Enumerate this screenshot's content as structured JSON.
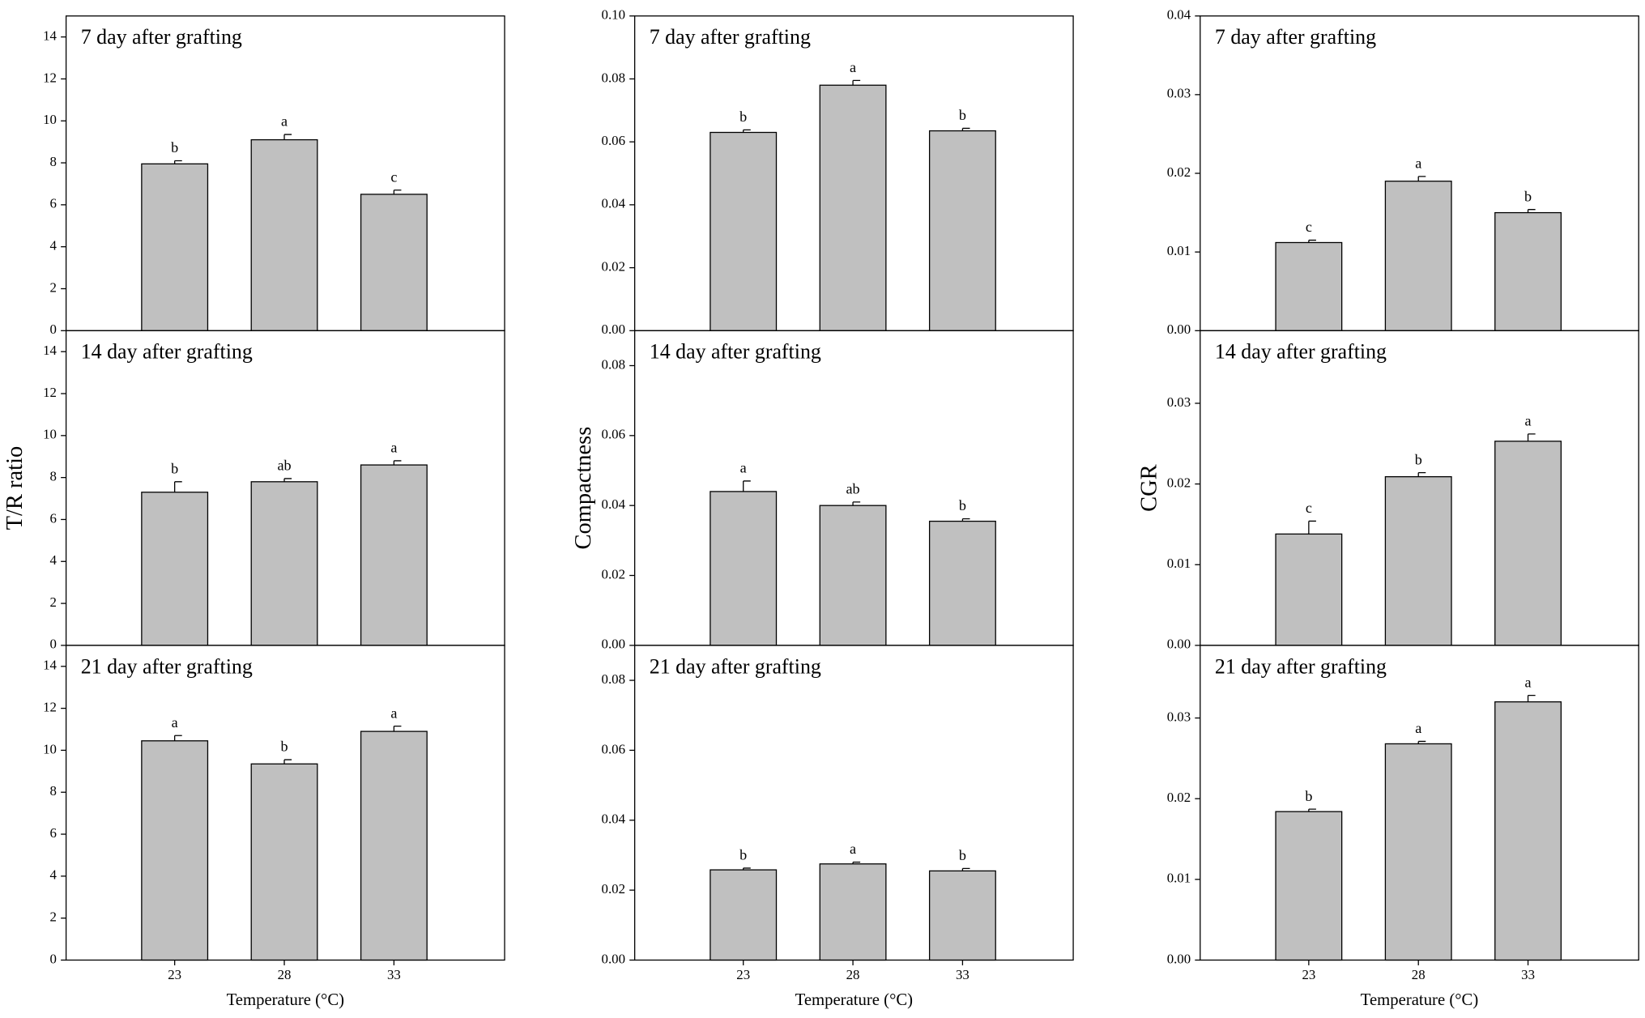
{
  "chart_data": [
    {
      "type": "bar",
      "title": "7 day after grafting",
      "categories": [
        null,
        null,
        null
      ],
      "values": [
        7.95,
        9.1,
        6.5
      ],
      "errors": [
        0.15,
        0.25,
        0.2
      ],
      "letters": [
        "b",
        "a",
        "c"
      ],
      "color": "#c0c0c0",
      "ylim": [
        0,
        15
      ],
      "yticks": [
        0,
        2,
        4,
        6,
        8,
        10,
        12,
        14
      ]
    },
    {
      "type": "bar",
      "title": "14 day after grafting",
      "ylabel": "T/R ratio",
      "categories": [
        null,
        null,
        null
      ],
      "values": [
        7.3,
        7.8,
        8.6
      ],
      "errors": [
        0.5,
        0.15,
        0.2
      ],
      "letters": [
        "b",
        "ab",
        "a"
      ],
      "color": "#c0c0c0",
      "ylim": [
        0,
        15
      ],
      "yticks": [
        0,
        2,
        4,
        6,
        8,
        10,
        12,
        14
      ]
    },
    {
      "type": "bar",
      "title": "21 day after grafting",
      "xlabel": "Temperature (°C)",
      "categories": [
        "23",
        "28",
        "33"
      ],
      "values": [
        10.45,
        9.35,
        10.9
      ],
      "errors": [
        0.25,
        0.2,
        0.25
      ],
      "letters": [
        "a",
        "b",
        "a"
      ],
      "color": "#c0c0c0",
      "ylim": [
        0,
        15
      ],
      "yticks": [
        0,
        2,
        4,
        6,
        8,
        10,
        12,
        14
      ]
    },
    {
      "type": "bar",
      "title": "7 day after grafting",
      "categories": [
        null,
        null,
        null
      ],
      "values": [
        0.063,
        0.078,
        0.0635
      ],
      "errors": [
        0.0008,
        0.0015,
        0.0008
      ],
      "letters": [
        "b",
        "a",
        "b"
      ],
      "color": "#c0c0c0",
      "ylim": [
        0,
        0.1
      ],
      "yticks": [
        {
          "value": 0,
          "label": "0.00"
        },
        {
          "value": 0.02,
          "label": "0.02"
        },
        {
          "value": 0.04,
          "label": "0.04"
        },
        {
          "value": 0.06,
          "label": "0.06"
        },
        {
          "value": 0.08,
          "label": "0.08"
        },
        {
          "value": 0.1,
          "label": "0.10"
        }
      ]
    },
    {
      "type": "bar",
      "title": "14 day after grafting",
      "ylabel": "Compactness",
      "categories": [
        null,
        null,
        null
      ],
      "values": [
        0.044,
        0.04,
        0.0355
      ],
      "errors": [
        0.003,
        0.001,
        0.0007
      ],
      "letters": [
        "a",
        "ab",
        "b"
      ],
      "color": "#c0c0c0",
      "ylim": [
        0,
        0.09
      ],
      "yticks": [
        {
          "value": 0,
          "label": "0.00"
        },
        {
          "value": 0.02,
          "label": "0.02"
        },
        {
          "value": 0.04,
          "label": "0.04"
        },
        {
          "value": 0.06,
          "label": "0.06"
        },
        {
          "value": 0.08,
          "label": "0.08"
        }
      ]
    },
    {
      "type": "bar",
      "title": "21 day after grafting",
      "xlabel": "Temperature (°C)",
      "categories": [
        "23",
        "28",
        "33"
      ],
      "values": [
        0.0258,
        0.0275,
        0.0255
      ],
      "errors": [
        0.0005,
        0.0005,
        0.0007
      ],
      "letters": [
        "b",
        "a",
        "b"
      ],
      "color": "#c0c0c0",
      "ylim": [
        0,
        0.09
      ],
      "yticks": [
        {
          "value": 0,
          "label": "0.00"
        },
        {
          "value": 0.02,
          "label": "0.02"
        },
        {
          "value": 0.04,
          "label": "0.04"
        },
        {
          "value": 0.06,
          "label": "0.06"
        },
        {
          "value": 0.08,
          "label": "0.08"
        }
      ]
    },
    {
      "type": "bar",
      "title": "7 day after grafting",
      "categories": [
        null,
        null,
        null
      ],
      "values": [
        0.0112,
        0.019,
        0.015
      ],
      "errors": [
        0.0003,
        0.0006,
        0.0004
      ],
      "letters": [
        "c",
        "a",
        "b"
      ],
      "color": "#c0c0c0",
      "ylim": [
        0,
        0.04
      ],
      "yticks": [
        {
          "value": 0,
          "label": "0.00"
        },
        {
          "value": 0.01,
          "label": "0.01"
        },
        {
          "value": 0.02,
          "label": "0.02"
        },
        {
          "value": 0.03,
          "label": "0.03"
        },
        {
          "value": 0.04,
          "label": "0.04"
        }
      ]
    },
    {
      "type": "bar",
      "title": "14 day after grafting",
      "ylabel": "CGR",
      "categories": [
        null,
        null,
        null
      ],
      "values": [
        0.0138,
        0.0209,
        0.0253
      ],
      "errors": [
        0.0016,
        0.0005,
        0.0009
      ],
      "letters": [
        "c",
        "b",
        "a"
      ],
      "color": "#c0c0c0",
      "ylim": [
        0,
        0.039
      ],
      "yticks": [
        {
          "value": 0,
          "label": "0.00"
        },
        {
          "value": 0.01,
          "label": "0.01"
        },
        {
          "value": 0.02,
          "label": "0.02"
        },
        {
          "value": 0.03,
          "label": "0.03"
        }
      ]
    },
    {
      "type": "bar",
      "title": "21 day after grafting",
      "xlabel": "Temperature (°C)",
      "categories": [
        "23",
        "28",
        "33"
      ],
      "values": [
        0.0184,
        0.0268,
        0.032
      ],
      "errors": [
        0.0003,
        0.0003,
        0.0008
      ],
      "letters": [
        "b",
        "a",
        "a"
      ],
      "color": "#c0c0c0",
      "ylim": [
        0,
        0.039
      ],
      "yticks": [
        {
          "value": 0,
          "label": "0.00"
        },
        {
          "value": 0.01,
          "label": "0.01"
        },
        {
          "value": 0.02,
          "label": "0.02"
        },
        {
          "value": 0.03,
          "label": "0.03"
        }
      ]
    }
  ]
}
